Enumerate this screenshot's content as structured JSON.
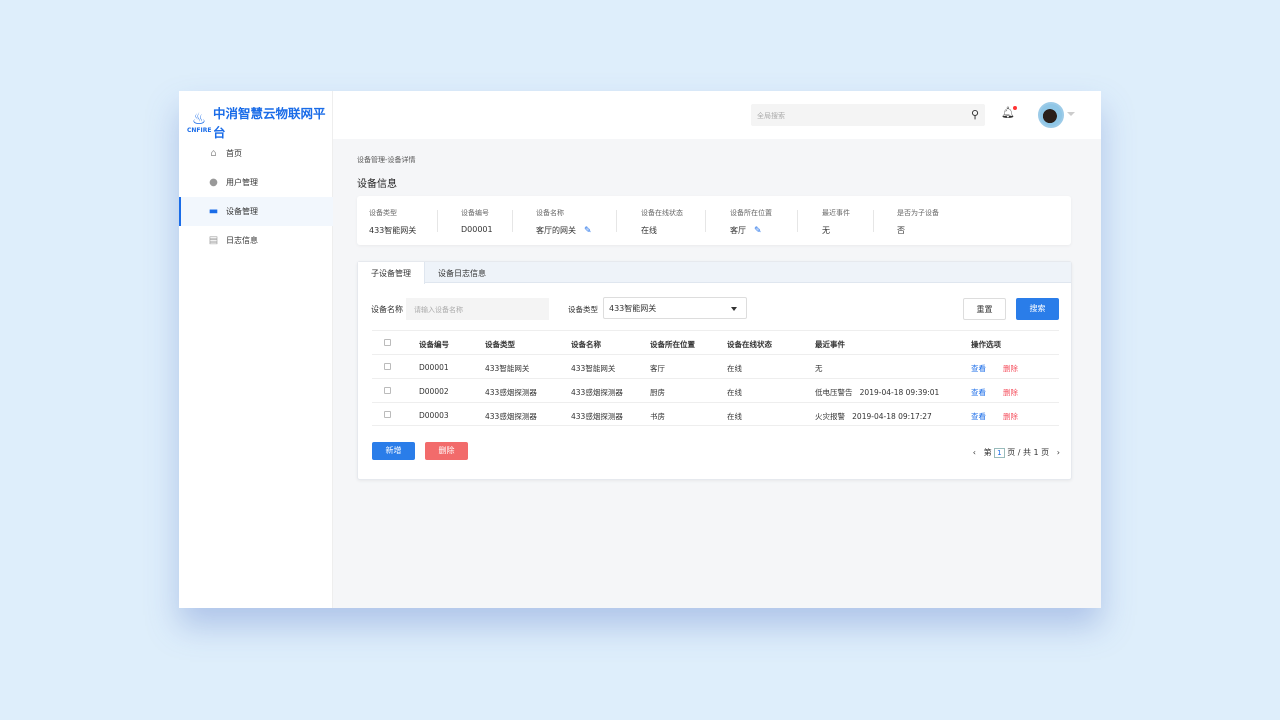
{
  "app": {
    "logo_text": "CNFIRE",
    "title": "中消智慧云物联网平台"
  },
  "sidebar": {
    "items": [
      {
        "label": "首页",
        "icon": "home-icon"
      },
      {
        "label": "用户管理",
        "icon": "user-icon"
      },
      {
        "label": "设备管理",
        "icon": "router-icon",
        "active": true
      },
      {
        "label": "日志信息",
        "icon": "clipboard-icon"
      }
    ]
  },
  "header": {
    "search_placeholder": "全局搜索",
    "notifications_unread": true
  },
  "breadcrumb": "设备管理-设备详情",
  "page_title": "设备信息",
  "info": [
    {
      "label": "设备类型",
      "value": "433智能网关"
    },
    {
      "label": "设备编号",
      "value": "D00001"
    },
    {
      "label": "设备名称",
      "value": "客厅的网关",
      "editable": true
    },
    {
      "label": "设备在线状态",
      "value": "在线"
    },
    {
      "label": "设备所在位置",
      "value": "客厅",
      "editable": true
    },
    {
      "label": "最近事件",
      "value": "无"
    },
    {
      "label": "是否为子设备",
      "value": "否"
    }
  ],
  "tabs": [
    {
      "label": "子设备管理",
      "active": true
    },
    {
      "label": "设备日志信息"
    }
  ],
  "filters": {
    "name_label": "设备名称",
    "name_placeholder": "请输入设备名称",
    "type_label": "设备类型",
    "type_value": "433智能网关",
    "reset": "重置",
    "search": "搜索"
  },
  "table": {
    "columns": [
      "设备编号",
      "设备类型",
      "设备名称",
      "设备所在位置",
      "设备在线状态",
      "最近事件",
      "操作选项"
    ],
    "rows": [
      {
        "id": "D00001",
        "type": "433智能网关",
        "name": "433智能网关",
        "location": "客厅",
        "status": "在线",
        "event": "无",
        "view": "查看",
        "delete": "删除"
      },
      {
        "id": "D00002",
        "type": "433感烟探测器",
        "name": "433感烟探测器",
        "location": "厨房",
        "status": "在线",
        "event": "低电压警告   2019-04-18 09:39:01",
        "view": "查看",
        "delete": "删除"
      },
      {
        "id": "D00003",
        "type": "433感烟探测器",
        "name": "433感烟探测器",
        "location": "书房",
        "status": "在线",
        "event": "火灾报警   2019-04-18 09:17:27",
        "view": "查看",
        "delete": "删除"
      }
    ]
  },
  "actions": {
    "add": "新增",
    "delete": "删除"
  },
  "pagination": {
    "prefix": "第",
    "current": "1",
    "suffix": "页 / 共 1 页"
  },
  "colors": {
    "primary": "#1a6ce8",
    "danger": "#f26b6b",
    "danger_text": "#f5515f"
  }
}
